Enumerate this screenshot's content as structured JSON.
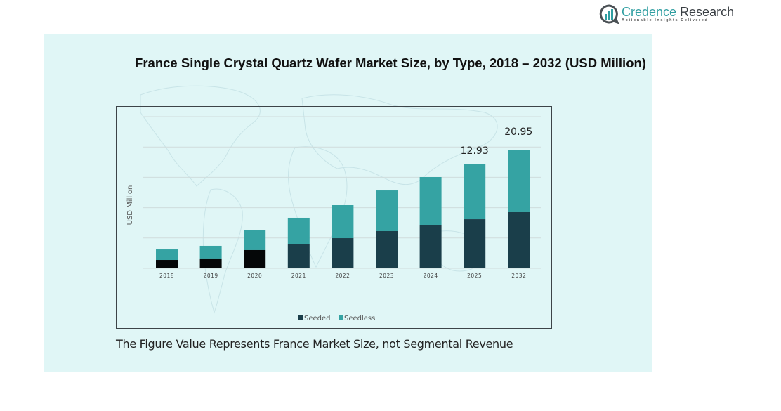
{
  "logo": {
    "brand": "Credence",
    "name_rest": " Research",
    "tagline": "Actionable Insights Delivered",
    "icon": "bar-chart-bubble-icon"
  },
  "footnote": "The Figure Value Represents France Market Size, not Segmental Revenue",
  "colors": {
    "seeded": "#1a3e4a",
    "seeded_early": "#050708",
    "seedless": "#35a3a3",
    "panel": "#e0f6f6",
    "grid": "#cfdcdc"
  },
  "chart_data": {
    "type": "bar",
    "stacked": true,
    "title": "France Single Crystal Quartz Wafer Market Size, by Type, 2018 – 2032 (USD Million)",
    "xlabel": "",
    "ylabel": "USD Million",
    "categories": [
      "2018",
      "2019",
      "2020",
      "2021",
      "2022",
      "2023",
      "2024",
      "2025",
      "2032"
    ],
    "series": [
      {
        "name": "Seeded",
        "values": [
          1.04,
          1.22,
          2.26,
          2.95,
          3.73,
          4.6,
          5.38,
          6.07,
          9.98
        ]
      },
      {
        "name": "Seedless",
        "values": [
          1.3,
          1.56,
          2.51,
          3.3,
          4.08,
          5.03,
          5.9,
          6.86,
          10.97
        ]
      }
    ],
    "totals": [
      2.34,
      2.78,
      4.77,
      6.25,
      7.81,
      9.63,
      11.28,
      12.93,
      20.95
    ],
    "data_labels": [
      {
        "category": "2025",
        "text": "12.93"
      },
      {
        "category": "2032",
        "text": "20.95"
      }
    ],
    "legend": {
      "position": "bottom",
      "entries": [
        "Seeded",
        "Seedless"
      ]
    },
    "grid": true,
    "y_tick_labels_shown": false,
    "gridline_count": 5
  }
}
